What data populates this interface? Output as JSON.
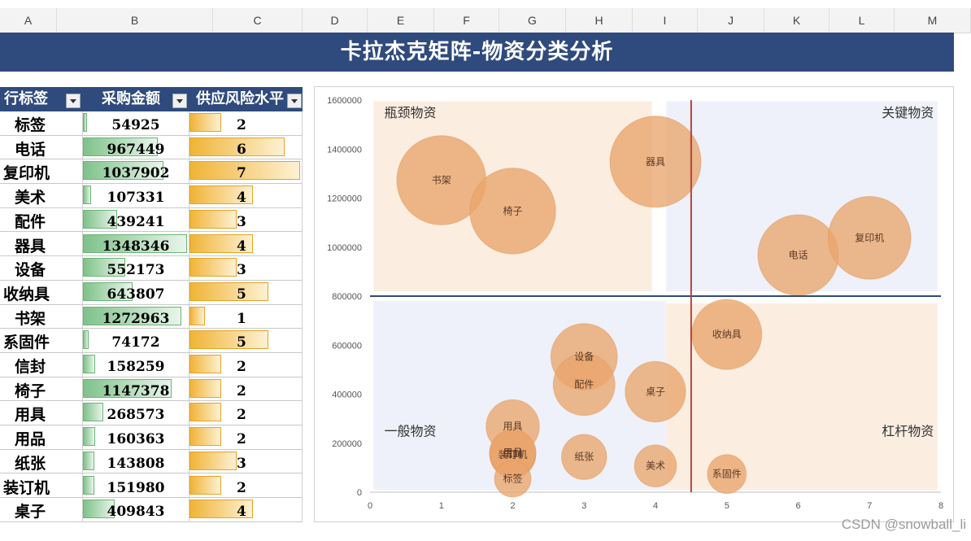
{
  "spreadsheet": {
    "columns": [
      "A",
      "B",
      "C",
      "D",
      "E",
      "F",
      "G",
      "H",
      "I",
      "J",
      "K",
      "L",
      "M"
    ]
  },
  "title": "卡拉杰克矩阵-物资分类分析",
  "table": {
    "headers": [
      "行标签",
      "采购金额",
      "供应风险水平"
    ],
    "rows": [
      {
        "label": "标签",
        "amount": "54925",
        "risk": "2"
      },
      {
        "label": "电话",
        "amount": "967449",
        "risk": "6"
      },
      {
        "label": "复印机",
        "amount": "1037902",
        "risk": "7"
      },
      {
        "label": "美术",
        "amount": "107331",
        "risk": "4"
      },
      {
        "label": "配件",
        "amount": "439241",
        "risk": "3"
      },
      {
        "label": "器具",
        "amount": "1348346",
        "risk": "4"
      },
      {
        "label": "设备",
        "amount": "552173",
        "risk": "3"
      },
      {
        "label": "收纳具",
        "amount": "643807",
        "risk": "5"
      },
      {
        "label": "书架",
        "amount": "1272963",
        "risk": "1"
      },
      {
        "label": "系固件",
        "amount": "74172",
        "risk": "5"
      },
      {
        "label": "信封",
        "amount": "158259",
        "risk": "2"
      },
      {
        "label": "椅子",
        "amount": "1147378",
        "risk": "2"
      },
      {
        "label": "用具",
        "amount": "268573",
        "risk": "2"
      },
      {
        "label": "用品",
        "amount": "160363",
        "risk": "2"
      },
      {
        "label": "纸张",
        "amount": "143808",
        "risk": "3"
      },
      {
        "label": "装订机",
        "amount": "151980",
        "risk": "2"
      },
      {
        "label": "桌子",
        "amount": "409843",
        "risk": "4"
      }
    ],
    "amount_bar_max": 1348346,
    "risk_bar_max": 7
  },
  "chart_data": {
    "type": "bubble",
    "x_range": [
      0,
      8
    ],
    "y_range": [
      0,
      1600000
    ],
    "x_ticks": [
      "0",
      "1",
      "2",
      "3",
      "4",
      "5",
      "6",
      "7",
      "8"
    ],
    "y_ticks": [
      "0",
      "200000",
      "400000",
      "600000",
      "800000",
      "1000000",
      "1200000",
      "1400000",
      "1600000"
    ],
    "divider_x": 4.5,
    "divider_y": 800000,
    "quadrants": {
      "top_left": "瓶颈物资",
      "top_right": "关键物资",
      "bottom_left": "一般物资",
      "bottom_right": "杠杆物资"
    },
    "colors": {
      "bubble": "#e9a56c",
      "quadrant_warm": "#fbeee0",
      "quadrant_cool": "#eef1f9",
      "h_divider": "#2f4a7c",
      "v_divider": "#b0443a"
    },
    "points": [
      {
        "name": "书架",
        "x": 1,
        "y": 1272963
      },
      {
        "name": "椅子",
        "x": 2,
        "y": 1147378
      },
      {
        "name": "器具",
        "x": 4,
        "y": 1348346
      },
      {
        "name": "电话",
        "x": 6,
        "y": 967449
      },
      {
        "name": "复印机",
        "x": 7,
        "y": 1037902
      },
      {
        "name": "收纳具",
        "x": 5,
        "y": 643807
      },
      {
        "name": "设备",
        "x": 3,
        "y": 552173
      },
      {
        "name": "配件",
        "x": 3,
        "y": 439241
      },
      {
        "name": "桌子",
        "x": 4,
        "y": 409843
      },
      {
        "name": "用具",
        "x": 2,
        "y": 268573
      },
      {
        "name": "装订机",
        "x": 2,
        "y": 151980
      },
      {
        "name": "信封",
        "x": 2,
        "y": 158259
      },
      {
        "name": "用品",
        "x": 2,
        "y": 160363
      },
      {
        "name": "标签",
        "x": 2,
        "y": 54925
      },
      {
        "name": "纸张",
        "x": 3,
        "y": 143808
      },
      {
        "name": "美术",
        "x": 4,
        "y": 107331
      },
      {
        "name": "系固件",
        "x": 5,
        "y": 74172
      }
    ]
  },
  "watermark": "CSDN @snowball_li"
}
